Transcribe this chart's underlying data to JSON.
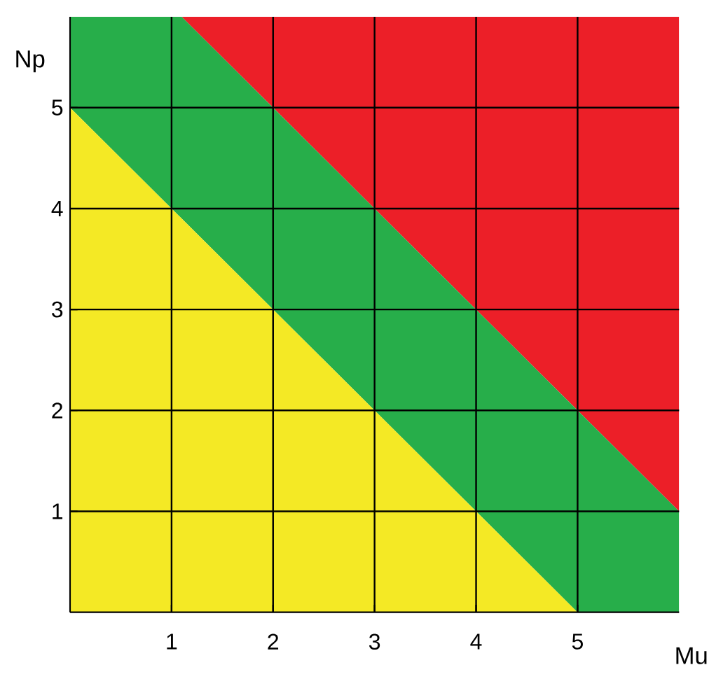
{
  "chart_data": {
    "type": "area",
    "stacked": true,
    "xlabel": "Mu",
    "ylabel": "Np",
    "x": [
      0,
      1.1,
      5,
      6
    ],
    "series": [
      {
        "color": "#f4e925",
        "values": [
          5,
          3.9,
          0,
          0
        ]
      },
      {
        "color": "#27ae4a",
        "values": [
          0.9,
          2,
          2,
          1
        ]
      },
      {
        "color": "#ec1f28",
        "values": [
          0,
          0,
          3.9,
          4.9
        ]
      }
    ],
    "xlim": [
      0,
      6
    ],
    "ylim": [
      0,
      5.9
    ],
    "xticks": [
      1,
      2,
      3,
      4,
      5
    ],
    "yticks": [
      1,
      2,
      3,
      4,
      5
    ],
    "grid": true
  }
}
